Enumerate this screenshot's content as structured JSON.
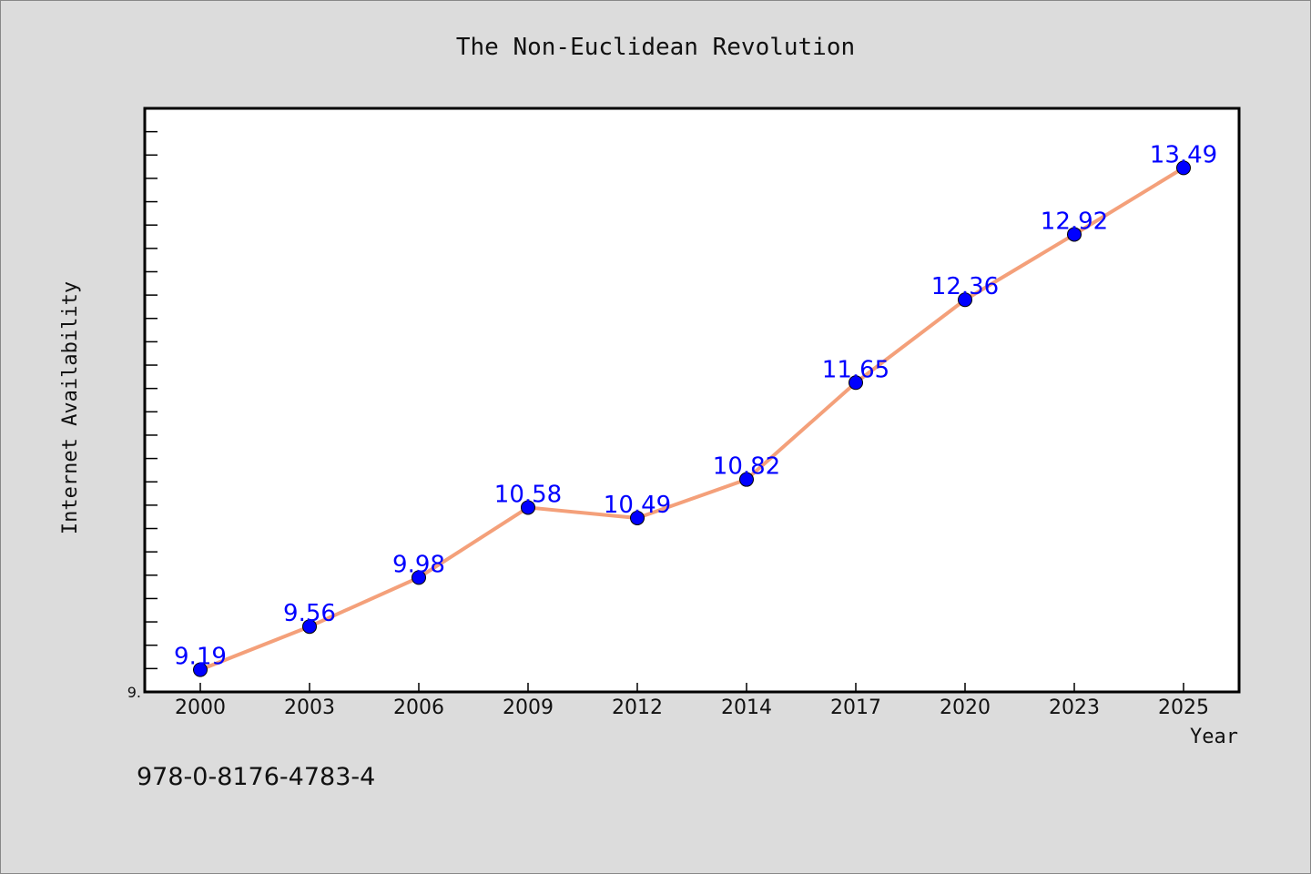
{
  "chart_data": {
    "type": "line",
    "title": "The Non-Euclidean Revolution",
    "xlabel": "Year",
    "ylabel": "Internet Availability",
    "x": [
      "2000",
      "2003",
      "2006",
      "2009",
      "2012",
      "2014",
      "2017",
      "2020",
      "2023",
      "2025"
    ],
    "series": [
      {
        "values": [
          9.19,
          9.56,
          9.98,
          10.58,
          10.49,
          10.82,
          11.65,
          12.36,
          12.92,
          13.49
        ],
        "data_labels": [
          "9.19",
          "9.56",
          "9.98",
          "10.58",
          "10.49",
          "10.82",
          "11.65",
          "12.36",
          "12.92",
          "13.49"
        ]
      }
    ],
    "y_tick_labels": [
      "9."
    ],
    "ylim": [
      9.0,
      14.0
    ],
    "grid": false,
    "line_color": "#f4a07a",
    "marker_color": "#0000ff",
    "label_color": "#0000ff"
  },
  "footer": {
    "isbn": "978-0-8176-4783-4"
  }
}
